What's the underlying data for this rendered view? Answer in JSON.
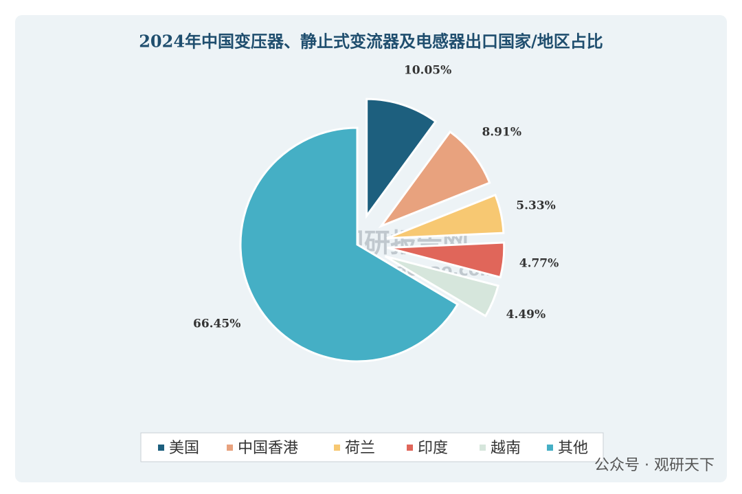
{
  "chart_data": {
    "type": "pie",
    "title": "2024年中国变压器、静止式变流器及电感器出口国家/地区占比",
    "categories": [
      "美国",
      "中国香港",
      "荷兰",
      "印度",
      "越南",
      "其他"
    ],
    "values": [
      10.05,
      8.91,
      5.33,
      4.77,
      4.49,
      66.45
    ],
    "value_labels": [
      "10.05%",
      "8.91%",
      "5.33%",
      "4.77%",
      "4.49%",
      "66.45%"
    ],
    "colors": [
      "#1d5f7e",
      "#e8a27e",
      "#f7c872",
      "#e0665a",
      "#d6e6dc",
      "#45afc5"
    ],
    "legend": "bottom"
  },
  "watermark": {
    "name": "观研报告网",
    "url": "chinabaogao.com"
  },
  "footer": "公众号 · 观研天下"
}
